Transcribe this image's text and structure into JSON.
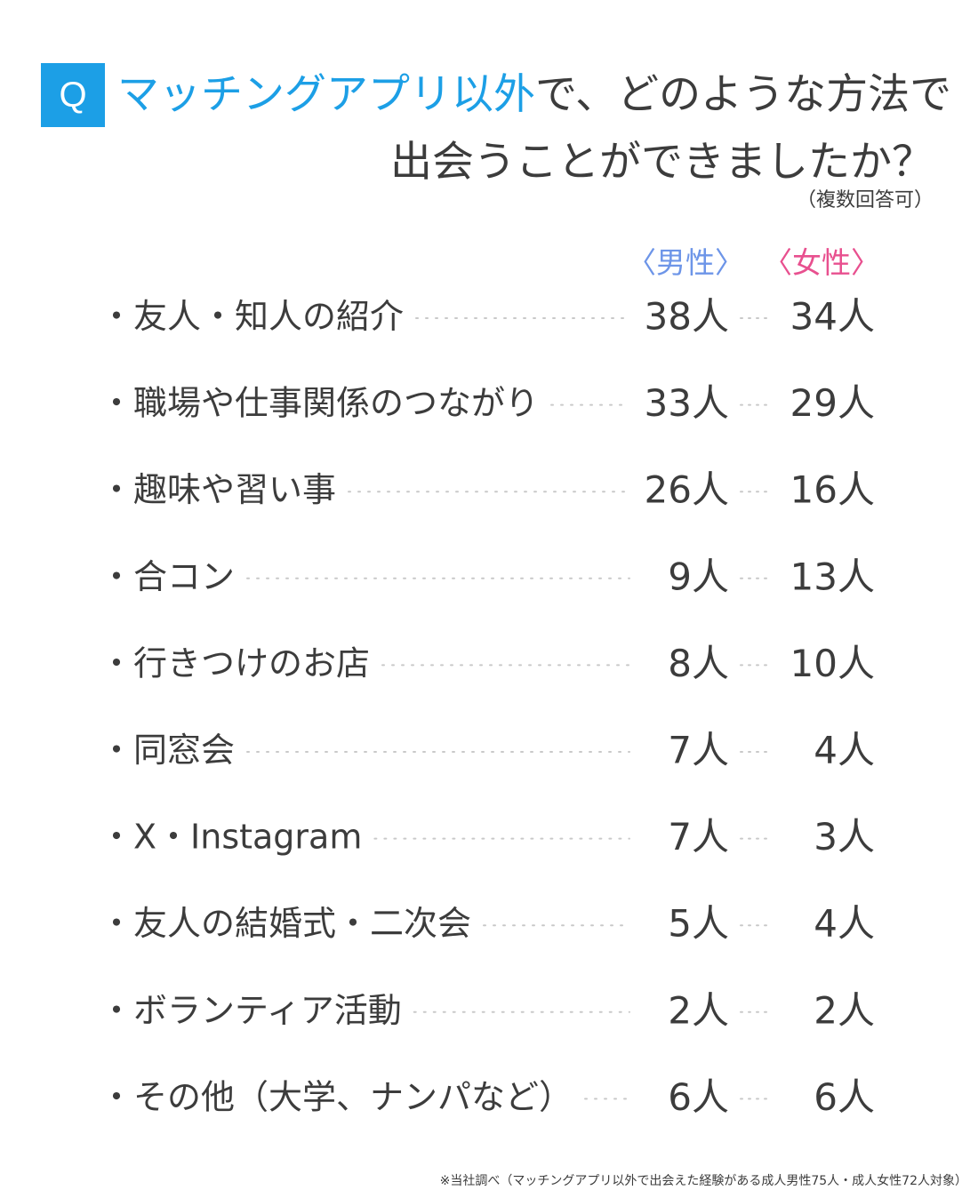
{
  "header": {
    "badge": "Q",
    "title_accent": "マッチングアプリ以外",
    "title_rest": "で、どのような方法で",
    "title_line2": "出会うことができましたか？",
    "note": "（複数回答可）"
  },
  "columns": {
    "male": "〈男性〉",
    "female": "〈女性〉"
  },
  "colors": {
    "accent": "#1c9fe6",
    "male": "#6d95e8",
    "female": "#e8508f"
  },
  "chart_data": {
    "type": "table",
    "unit": "人",
    "series": [
      {
        "name": "男性",
        "values": [
          38,
          33,
          26,
          9,
          8,
          7,
          7,
          5,
          2,
          6
        ]
      },
      {
        "name": "女性",
        "values": [
          34,
          29,
          16,
          13,
          10,
          4,
          3,
          4,
          2,
          6
        ]
      }
    ],
    "rows": [
      {
        "label": "・友人・知人の紹介",
        "male": "38人",
        "female": "34人"
      },
      {
        "label": "・職場や仕事関係のつながり",
        "male": "33人",
        "female": "29人"
      },
      {
        "label": "・趣味や習い事",
        "male": "26人",
        "female": "16人"
      },
      {
        "label": "・合コン",
        "male": "9人",
        "female": "13人"
      },
      {
        "label": "・行きつけのお店",
        "male": "8人",
        "female": "10人"
      },
      {
        "label": "・同窓会",
        "male": "7人",
        "female": "4人"
      },
      {
        "label": "・X・Instagram",
        "male": "7人",
        "female": "3人"
      },
      {
        "label": "・友人の結婚式・二次会",
        "male": "5人",
        "female": "4人"
      },
      {
        "label": "・ボランティア活動",
        "male": "2人",
        "female": "2人"
      },
      {
        "label": "・その他（大学、ナンパなど）",
        "male": "6人",
        "female": "6人"
      }
    ]
  },
  "footer": {
    "source": "※当社調べ（マッチングアプリ以外で出会えた経験がある成人男性75人・成人女性72人対象）"
  }
}
